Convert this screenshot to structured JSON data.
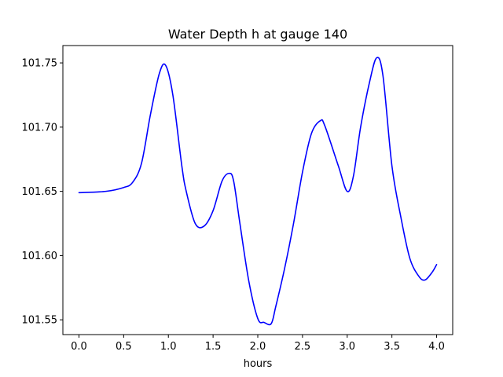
{
  "chart_data": {
    "type": "line",
    "title": "Water Depth h at gauge 140",
    "xlabel": "hours",
    "ylabel": "",
    "xlim": [
      -0.18,
      4.18
    ],
    "ylim": [
      101.5385,
      101.7635
    ],
    "x_ticks": [
      0.0,
      0.5,
      1.0,
      1.5,
      2.0,
      2.5,
      3.0,
      3.5,
      4.0
    ],
    "x_tick_labels": [
      "0.0",
      "0.5",
      "1.0",
      "1.5",
      "2.0",
      "2.5",
      "3.0",
      "3.5",
      "4.0"
    ],
    "y_ticks": [
      101.55,
      101.6,
      101.65,
      101.7,
      101.75
    ],
    "y_tick_labels": [
      "101.55",
      "101.60",
      "101.65",
      "101.70",
      "101.75"
    ],
    "grid": false,
    "legend": "none",
    "series": [
      {
        "color": "#0000ff",
        "x": [
          0.0,
          0.3,
          0.5,
          0.6,
          0.7,
          0.8,
          0.9,
          0.97,
          1.05,
          1.15,
          1.2,
          1.3,
          1.4,
          1.5,
          1.6,
          1.68,
          1.73,
          1.8,
          1.9,
          2.0,
          2.07,
          2.15,
          2.2,
          2.3,
          2.4,
          2.5,
          2.6,
          2.7,
          2.75,
          2.9,
          3.0,
          3.07,
          3.15,
          3.25,
          3.33,
          3.4,
          3.5,
          3.6,
          3.7,
          3.8,
          3.87,
          3.95,
          4.0
        ],
        "y": [
          101.649,
          101.65,
          101.653,
          101.657,
          101.672,
          101.71,
          101.742,
          101.748,
          101.725,
          101.67,
          101.65,
          101.625,
          101.623,
          101.635,
          101.658,
          101.664,
          101.658,
          101.625,
          101.58,
          101.551,
          101.548,
          101.547,
          101.56,
          101.59,
          101.625,
          101.665,
          101.695,
          101.705,
          101.701,
          101.67,
          101.65,
          101.662,
          101.7,
          101.735,
          101.754,
          101.74,
          101.67,
          101.63,
          101.598,
          101.584,
          101.581,
          101.587,
          101.593
        ]
      }
    ]
  }
}
